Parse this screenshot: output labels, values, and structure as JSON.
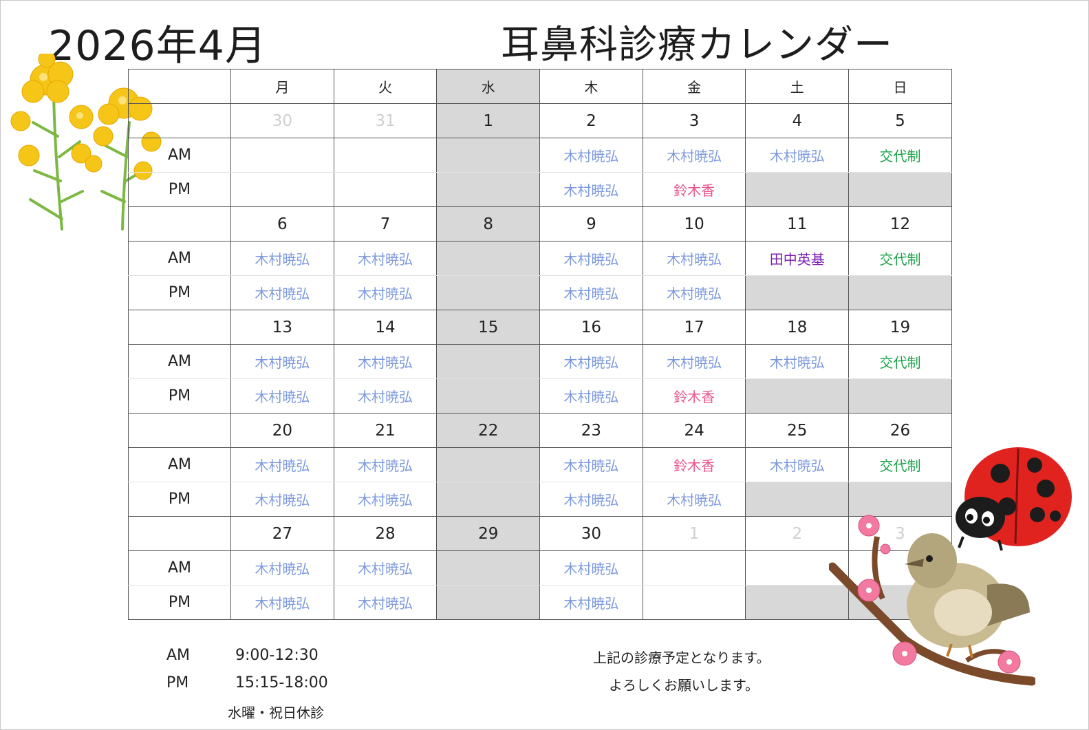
{
  "header": {
    "month": "2026年4月",
    "title": "耳鼻科診療カレンダー"
  },
  "weekdays": [
    "月",
    "火",
    "水",
    "木",
    "金",
    "土",
    "日"
  ],
  "slot_labels": {
    "am": "AM",
    "pm": "PM"
  },
  "weeks": [
    {
      "days": [
        {
          "date": "30",
          "other_month": true,
          "am": "",
          "pm": ""
        },
        {
          "date": "31",
          "other_month": true,
          "am": "",
          "pm": ""
        },
        {
          "date": "1",
          "closed": true,
          "am": "",
          "pm": ""
        },
        {
          "date": "2",
          "am": "木村暁弘",
          "pm": "木村暁弘"
        },
        {
          "date": "3",
          "am": "木村暁弘",
          "pm": "鈴木香"
        },
        {
          "date": "4",
          "am": "木村暁弘",
          "pm": "",
          "pm_closed": true
        },
        {
          "date": "5",
          "am": "交代制",
          "pm": "",
          "pm_closed": true
        }
      ]
    },
    {
      "days": [
        {
          "date": "6",
          "am": "木村暁弘",
          "pm": "木村暁弘"
        },
        {
          "date": "7",
          "am": "木村暁弘",
          "pm": "木村暁弘"
        },
        {
          "date": "8",
          "closed": true,
          "am": "",
          "pm": ""
        },
        {
          "date": "9",
          "am": "木村暁弘",
          "pm": "木村暁弘"
        },
        {
          "date": "10",
          "am": "木村暁弘",
          "pm": "木村暁弘"
        },
        {
          "date": "11",
          "am": "田中英基",
          "pm": "",
          "pm_closed": true
        },
        {
          "date": "12",
          "am": "交代制",
          "pm": "",
          "pm_closed": true
        }
      ]
    },
    {
      "days": [
        {
          "date": "13",
          "am": "木村暁弘",
          "pm": "木村暁弘"
        },
        {
          "date": "14",
          "am": "木村暁弘",
          "pm": "木村暁弘"
        },
        {
          "date": "15",
          "closed": true,
          "am": "",
          "pm": ""
        },
        {
          "date": "16",
          "am": "木村暁弘",
          "pm": "木村暁弘"
        },
        {
          "date": "17",
          "am": "木村暁弘",
          "pm": "鈴木香"
        },
        {
          "date": "18",
          "am": "木村暁弘",
          "pm": "",
          "pm_closed": true
        },
        {
          "date": "19",
          "am": "交代制",
          "pm": "",
          "pm_closed": true
        }
      ]
    },
    {
      "days": [
        {
          "date": "20",
          "am": "木村暁弘",
          "pm": "木村暁弘"
        },
        {
          "date": "21",
          "am": "木村暁弘",
          "pm": "木村暁弘"
        },
        {
          "date": "22",
          "closed": true,
          "am": "",
          "pm": ""
        },
        {
          "date": "23",
          "am": "木村暁弘",
          "pm": "木村暁弘"
        },
        {
          "date": "24",
          "am": "鈴木香",
          "pm": "木村暁弘"
        },
        {
          "date": "25",
          "am": "木村暁弘",
          "pm": "",
          "pm_closed": true
        },
        {
          "date": "26",
          "am": "交代制",
          "pm": "",
          "pm_closed": true
        }
      ]
    },
    {
      "days": [
        {
          "date": "27",
          "am": "木村暁弘",
          "pm": "木村暁弘"
        },
        {
          "date": "28",
          "am": "木村暁弘",
          "pm": "木村暁弘"
        },
        {
          "date": "29",
          "closed": true,
          "am": "",
          "pm": ""
        },
        {
          "date": "30",
          "am": "木村暁弘",
          "pm": "木村暁弘"
        },
        {
          "date": "1",
          "other_month": true,
          "am": "",
          "pm": ""
        },
        {
          "date": "2",
          "other_month": true,
          "am": "",
          "pm": "",
          "pm_closed": true
        },
        {
          "date": "3",
          "other_month": true,
          "am": "",
          "pm": "",
          "pm_closed": true
        }
      ]
    }
  ],
  "doctor_colors": {
    "木村暁弘": "#7d99dd",
    "鈴木香": "#e8558e",
    "田中英基": "#7b1fb0",
    "交代制": "#1ca34a"
  },
  "footer": {
    "am_label": "AM",
    "am_hours": "9:00-12:30",
    "pm_label": "PM",
    "pm_hours": "15:15-18:00",
    "closed_note": "水曜・祝日休診",
    "message_line1": "上記の診療予定となります。",
    "message_line2": "よろしくお願いします。"
  }
}
